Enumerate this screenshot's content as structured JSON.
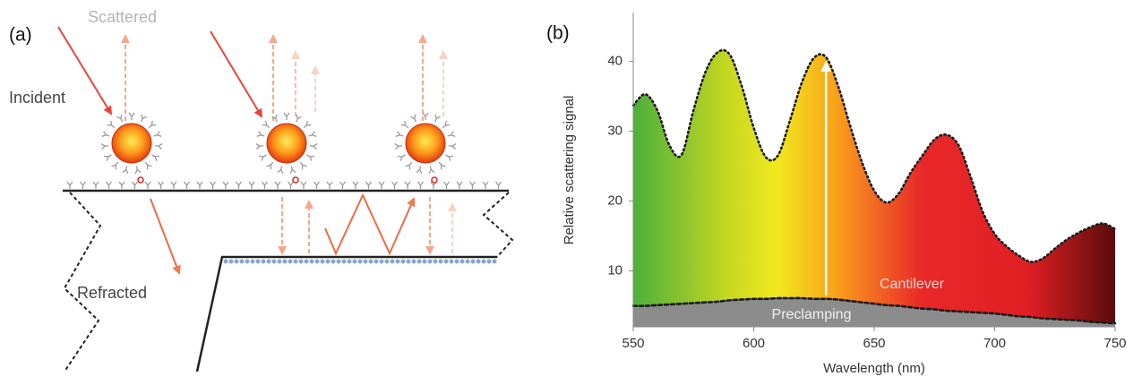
{
  "panel_a": {
    "label": "(a)",
    "scattered": "Scattered",
    "incident": "Incident",
    "refracted": "Refracted"
  },
  "panel_b_label": "(b)",
  "chart_data": {
    "type": "area",
    "x_label": "Wavelength (nm)",
    "y_label": "Relative scattering signal",
    "x": [
      550,
      555,
      560,
      565,
      570,
      575,
      580,
      585,
      590,
      595,
      600,
      605,
      610,
      615,
      620,
      625,
      630,
      635,
      640,
      645,
      650,
      655,
      660,
      665,
      670,
      675,
      680,
      685,
      690,
      695,
      700,
      705,
      710,
      715,
      720,
      725,
      730,
      735,
      740,
      745,
      750
    ],
    "series": [
      {
        "name": "Cantilever",
        "color": "#1a1a1a",
        "values": [
          33.7,
          35.3,
          33.0,
          28.0,
          26.6,
          33.0,
          38.5,
          41.3,
          41.0,
          36.5,
          30.5,
          26.3,
          26.5,
          31.5,
          37.0,
          40.5,
          40.6,
          36.5,
          30.8,
          25.5,
          21.5,
          19.8,
          21.0,
          24.0,
          26.5,
          28.8,
          29.5,
          28.0,
          23.5,
          18.5,
          15.3,
          13.5,
          12.2,
          11.3,
          11.8,
          13.2,
          14.5,
          15.5,
          16.3,
          16.8,
          16.0
        ]
      },
      {
        "name": "Preclamping",
        "color": "#1a1a1a",
        "fill": "#8c8c8c",
        "values": [
          5.0,
          5.0,
          5.1,
          5.2,
          5.3,
          5.4,
          5.5,
          5.6,
          5.8,
          5.9,
          6.0,
          6.0,
          6.1,
          6.1,
          6.1,
          6.0,
          6.0,
          5.9,
          5.7,
          5.5,
          5.3,
          5.1,
          5.0,
          4.8,
          4.6,
          4.5,
          4.3,
          4.2,
          4.1,
          4.0,
          3.9,
          3.7,
          3.5,
          3.4,
          3.2,
          3.1,
          3.0,
          2.9,
          2.7,
          2.6,
          2.5
        ]
      }
    ],
    "xlim": [
      550,
      750
    ],
    "xticks": [
      550,
      600,
      650,
      700,
      750
    ],
    "ylim": [
      2,
      47
    ],
    "yticks": [
      10,
      20,
      30,
      40
    ]
  }
}
